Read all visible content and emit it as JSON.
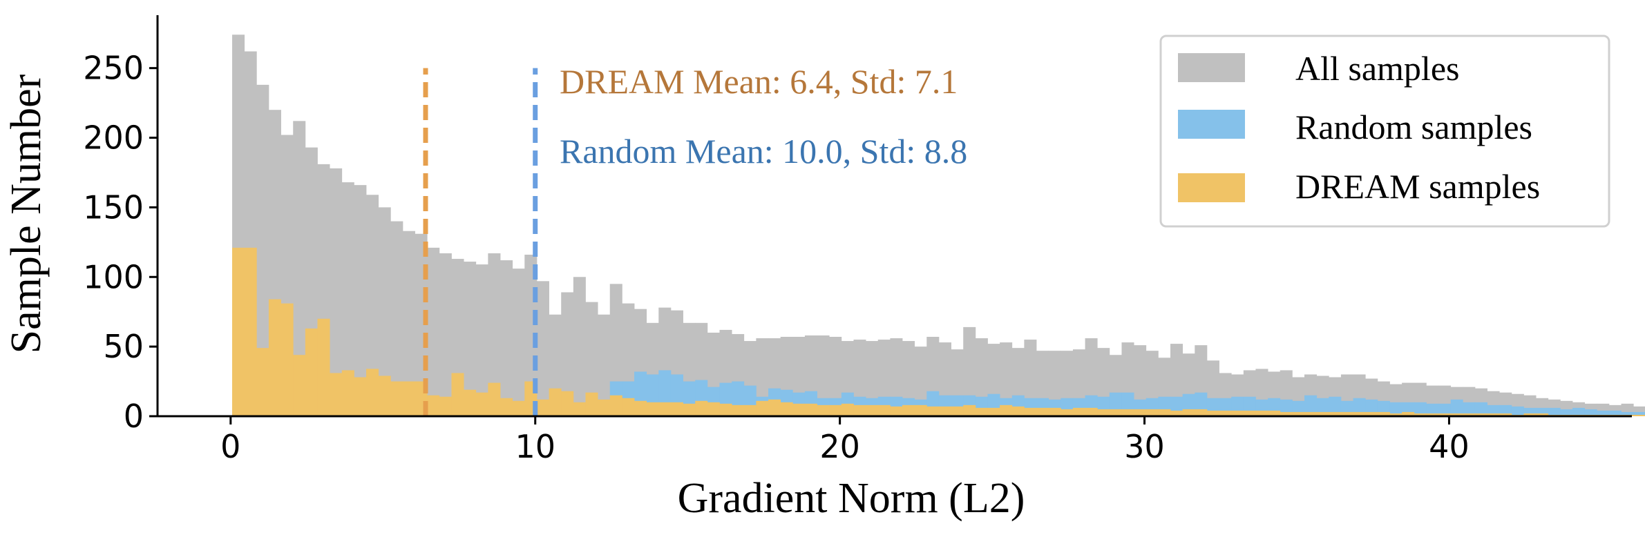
{
  "chart_data": {
    "type": "bar",
    "xlabel": "Gradient Norm (L2)",
    "ylabel": "Sample Number",
    "xlim": [
      -2.4,
      46
    ],
    "ylim": [
      0,
      288
    ],
    "xticks": [
      0,
      10,
      20,
      30,
      40
    ],
    "yticks": [
      0,
      50,
      100,
      150,
      200,
      250
    ],
    "bin_width": 0.4,
    "bin_start": 0.05,
    "legend_position": "top-right",
    "colors": {
      "All samples": "#c0c0c0",
      "Random samples": "#85c1ea",
      "DREAM samples": "#f0c366",
      "dream_mean_line": "#e69f4d",
      "random_mean_line": "#6a9fe0",
      "dream_annotation": "#b5773a",
      "random_annotation": "#3b75b0"
    },
    "series": [
      {
        "name": "All samples",
        "values": [
          274,
          262,
          238,
          220,
          202,
          212,
          193,
          181,
          178,
          168,
          166,
          159,
          150,
          140,
          133,
          131,
          121,
          117,
          113,
          111,
          109,
          117,
          112,
          106,
          116,
          97,
          73,
          89,
          100,
          82,
          73,
          95,
          81,
          77,
          67,
          78,
          76,
          67,
          67,
          60,
          62,
          59,
          54,
          56,
          56,
          57,
          57,
          58,
          58,
          57,
          54,
          55,
          54,
          55,
          56,
          54,
          50,
          57,
          53,
          48,
          64,
          56,
          52,
          53,
          49,
          55,
          47,
          47,
          47,
          48,
          56,
          49,
          44,
          53,
          51,
          47,
          42,
          52,
          45,
          51,
          40,
          31,
          30,
          33,
          34,
          32,
          33,
          28,
          30,
          29,
          28,
          30,
          30,
          27,
          25,
          23,
          24,
          24,
          22,
          22,
          21,
          21,
          20,
          18,
          17,
          16,
          15,
          13,
          12,
          11,
          10,
          9,
          9,
          8,
          9,
          7,
          6,
          5,
          4,
          6,
          5,
          4,
          5,
          4,
          5,
          4,
          4,
          3,
          3,
          3,
          3,
          2,
          2,
          2,
          2,
          2,
          3,
          2,
          2,
          2,
          2,
          1,
          1,
          1,
          2,
          1,
          1,
          1,
          1,
          2,
          1,
          1,
          1,
          1,
          1,
          1,
          1,
          1,
          1,
          1,
          2,
          1,
          1,
          1,
          1,
          1,
          1,
          1,
          1,
          1,
          1,
          2,
          1,
          1,
          1,
          1,
          1,
          1,
          1,
          1,
          1,
          1,
          1,
          1,
          1,
          1,
          1,
          1,
          1,
          1,
          1,
          1,
          1,
          1,
          1,
          1,
          1,
          1,
          1,
          1,
          1,
          1,
          1,
          1,
          1,
          1,
          1,
          1,
          1,
          1,
          1,
          1,
          1,
          2,
          1,
          1,
          1,
          1,
          1,
          1,
          1
        ]
      },
      {
        "name": "Random samples",
        "values": [
          0,
          0,
          0,
          0,
          0,
          0,
          0,
          0,
          0,
          0,
          0,
          0,
          0,
          0,
          0,
          0,
          0,
          0,
          0,
          0,
          0,
          0,
          0,
          0,
          0,
          0,
          0,
          0,
          0,
          0,
          0,
          25,
          25,
          32,
          30,
          33,
          30,
          25,
          26,
          21,
          24,
          25,
          22,
          14,
          20,
          19,
          17,
          18,
          13,
          13,
          17,
          14,
          13,
          14,
          14,
          13,
          12,
          18,
          15,
          15,
          15,
          14,
          16,
          13,
          15,
          13,
          13,
          12,
          13,
          13,
          15,
          14,
          17,
          17,
          12,
          13,
          14,
          14,
          16,
          17,
          13,
          13,
          14,
          14,
          12,
          13,
          12,
          11,
          15,
          13,
          14,
          11,
          13,
          12,
          11,
          10,
          10,
          10,
          9,
          9,
          12,
          10,
          10,
          8,
          8,
          7,
          6,
          6,
          6,
          5,
          6,
          5,
          4,
          4,
          3,
          3,
          4,
          4,
          3,
          3,
          4,
          3,
          3,
          3,
          2,
          2,
          2,
          2,
          2,
          2,
          2,
          2,
          2,
          1,
          1,
          1,
          1,
          1,
          1,
          1,
          1,
          1,
          1,
          1,
          1,
          1,
          1,
          1,
          1,
          1,
          1,
          1,
          1,
          1,
          1,
          1,
          1,
          1,
          1,
          1,
          1,
          1,
          1,
          1,
          1,
          1,
          1,
          1,
          1,
          1,
          1,
          1,
          1,
          1,
          1,
          1,
          1,
          1,
          1,
          1,
          1,
          1,
          1,
          1,
          1,
          1,
          1,
          1,
          1,
          1,
          1,
          1,
          1,
          1,
          1,
          1,
          1,
          1,
          1,
          1,
          1,
          1,
          1,
          1,
          1,
          1,
          1,
          1,
          1,
          1,
          1,
          1,
          1,
          1,
          1,
          1,
          1,
          1,
          1,
          1,
          1
        ]
      },
      {
        "name": "DREAM samples",
        "values": [
          121,
          121,
          49,
          84,
          81,
          44,
          63,
          70,
          31,
          33,
          28,
          34,
          29,
          25,
          25,
          25,
          15,
          14,
          31,
          19,
          17,
          24,
          13,
          11,
          25,
          12,
          20,
          18,
          10,
          17,
          12,
          15,
          13,
          11,
          10,
          10,
          10,
          9,
          11,
          10,
          9,
          8,
          8,
          11,
          12,
          10,
          9,
          9,
          8,
          8,
          9,
          8,
          8,
          8,
          7,
          8,
          8,
          7,
          7,
          7,
          8,
          6,
          6,
          8,
          7,
          6,
          6,
          6,
          5,
          6,
          6,
          5,
          5,
          5,
          5,
          5,
          5,
          4,
          5,
          5,
          4,
          4,
          4,
          4,
          4,
          4,
          3,
          3,
          3,
          3,
          3,
          3,
          3,
          3,
          3,
          2,
          3,
          2,
          2,
          2,
          2,
          2,
          2,
          2,
          2,
          1,
          2,
          2,
          1,
          1,
          1,
          1,
          1,
          1,
          1,
          1,
          1,
          1,
          1,
          1,
          1,
          1,
          0,
          1,
          0,
          1,
          0,
          1,
          0,
          1,
          0,
          1,
          0,
          1,
          0,
          1,
          0,
          0,
          1,
          0,
          1,
          0,
          0,
          0,
          0,
          0,
          0,
          0,
          0,
          0,
          0,
          0,
          0,
          0,
          0,
          0,
          0,
          0,
          0,
          0,
          0,
          0,
          0,
          0,
          0,
          0,
          0,
          0,
          0,
          0,
          0,
          0,
          0,
          0,
          0,
          0,
          0,
          0,
          0,
          0,
          0,
          0,
          0,
          0,
          0,
          0,
          0,
          0,
          0,
          0,
          0,
          0,
          0,
          0,
          0,
          0,
          0,
          0,
          0,
          0,
          0,
          0,
          0,
          0,
          0,
          0,
          0,
          0,
          0,
          0,
          0
        ]
      }
    ],
    "mean_lines": [
      {
        "series": "DREAM samples",
        "x": 6.4,
        "ymax": 250
      },
      {
        "series": "Random samples",
        "x": 10.0,
        "ymax": 250
      }
    ],
    "annotations": [
      {
        "text": "DREAM Mean: 6.4, Std: 7.1",
        "color": "#b5773a"
      },
      {
        "text": "Random Mean: 10.0, Std: 8.8",
        "color": "#3b75b0"
      }
    ],
    "legend": [
      "All samples",
      "Random samples",
      "DREAM samples"
    ]
  }
}
